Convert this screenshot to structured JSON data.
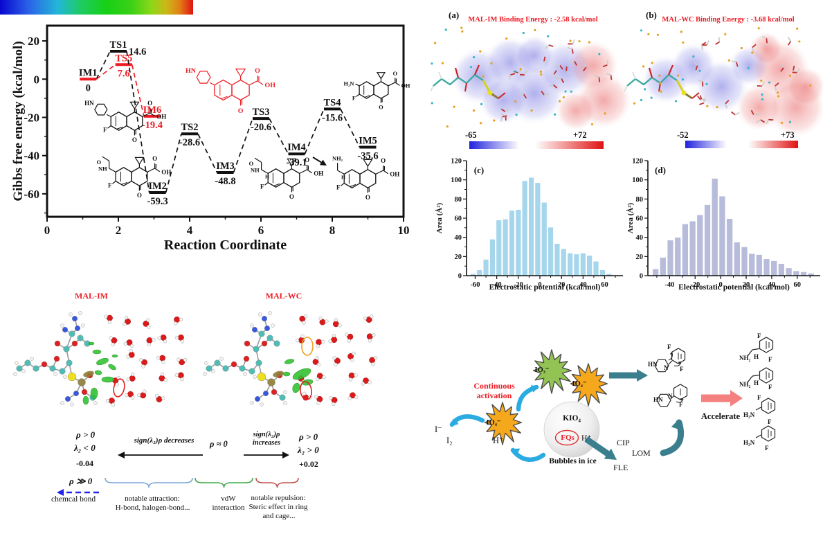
{
  "colors": {
    "accent_red": "#ed1c24",
    "hist_c_bar": "#a5d6eb",
    "hist_d_bar": "#b8bcdb",
    "starburst_green": "#92c353",
    "starburst_orange": "#f6a81c",
    "arrow_blue": "#2aabe2",
    "arrow_teal": "#3b7f8e",
    "arrow_pink": "#f58080",
    "esp_blue": "#2121dd",
    "esp_red": "#e01212"
  },
  "chart_data": [
    {
      "id": "gibbs_energy_profile",
      "type": "line",
      "variant": "reaction-energy-levels",
      "xlabel": "Reaction Coordinate",
      "ylabel": "Gibbs free energy (kcal/mol)",
      "xlim": [
        0,
        10
      ],
      "ylim": [
        -72,
        28
      ],
      "x_ticks": [
        0,
        2,
        4,
        6,
        8,
        10
      ],
      "y_ticks": [
        20,
        0,
        -20,
        -40,
        -60
      ],
      "levels": [
        {
          "name": "IM1",
          "value": "0",
          "num": 0,
          "x": 1.15,
          "series": "main",
          "value_pos": "below",
          "bar_color": "#ed1c24"
        },
        {
          "name": "TS1",
          "value": "14.6",
          "num": 14.6,
          "x": 2.0,
          "series": "main",
          "value_pos": "right"
        },
        {
          "name": "TS5",
          "value": "7.6",
          "num": 7.6,
          "x": 2.15,
          "series": "alt",
          "value_pos": "below"
        },
        {
          "name": "IM6",
          "value": "-19.4",
          "num": -19.4,
          "x": 2.95,
          "series": "alt",
          "value_pos": "below"
        },
        {
          "name": "IM2",
          "value": "-59.3",
          "num": -59.3,
          "x": 3.1,
          "series": "main",
          "value_pos": "below"
        },
        {
          "name": "TS2",
          "value": "-28.6",
          "num": -28.6,
          "x": 4.0,
          "series": "main",
          "value_pos": "below"
        },
        {
          "name": "IM3",
          "value": "-48.8",
          "num": -48.8,
          "x": 5.0,
          "series": "main",
          "value_pos": "below"
        },
        {
          "name": "TS3",
          "value": "-20.6",
          "num": -20.6,
          "x": 6.0,
          "series": "main",
          "value_pos": "below"
        },
        {
          "name": "IM4",
          "value": "-39.1",
          "num": -39.1,
          "x": 7.0,
          "series": "main",
          "value_pos": "below"
        },
        {
          "name": "TS4",
          "value": "-15.6",
          "num": -15.6,
          "x": 8.0,
          "series": "main",
          "value_pos": "below"
        },
        {
          "name": "IM5",
          "value": "-35.6",
          "num": -35.6,
          "x": 9.0,
          "series": "main",
          "value_pos": "below"
        }
      ],
      "paths": {
        "main": [
          "IM1",
          "TS1",
          "IM2",
          "TS2",
          "IM3",
          "TS3",
          "IM4",
          "TS4",
          "IM5"
        ],
        "alt": [
          "IM1",
          "TS5",
          "IM6"
        ]
      },
      "series_colors": {
        "main": "#111111",
        "alt": "#ed1c24"
      }
    },
    {
      "id": "esp_histogram_mal_im",
      "tag": "(c)",
      "type": "bar",
      "xlabel": "Electrostatic potential (kcal/mol)",
      "ylabel": "Area (Å²)",
      "xlim": [
        -68,
        77
      ],
      "ylim": [
        0,
        120
      ],
      "x_ticks": [
        -60,
        -40,
        -20,
        0,
        20,
        40,
        60
      ],
      "y_ticks": [
        0,
        20,
        40,
        60,
        80,
        100,
        120
      ],
      "bin_centers": [
        -62,
        -56,
        -50,
        -44,
        -38,
        -32,
        -26,
        -20,
        -14,
        -8,
        -2,
        4,
        10,
        16,
        22,
        28,
        34,
        40,
        46,
        52,
        58,
        64
      ],
      "values": [
        2,
        6,
        17,
        38,
        58,
        59,
        68,
        69,
        99,
        102.5,
        97,
        76.5,
        50.5,
        33.5,
        28,
        23.5,
        22.5,
        23.5,
        21,
        15,
        6,
        2
      ],
      "bar_color": "#a5d6eb"
    },
    {
      "id": "esp_histogram_mal_wc",
      "tag": "(d)",
      "type": "bar",
      "xlabel": "Electrostatic potential (kcal/mol)",
      "ylabel": "Area (Å²)",
      "xlim": [
        -57,
        78
      ],
      "ylim": [
        0,
        120
      ],
      "x_ticks": [
        -40,
        -20,
        0,
        20,
        40,
        60
      ],
      "y_ticks": [
        0,
        20,
        40,
        60,
        80,
        100,
        120
      ],
      "bin_centers": [
        -51,
        -45.2,
        -39.4,
        -33.6,
        -27.8,
        -22,
        -16.2,
        -10.4,
        -4.6,
        1.2,
        7,
        12.8,
        18.6,
        24.4,
        30.2,
        36,
        41.8,
        47.6,
        53.4,
        59.2,
        65,
        70.8
      ],
      "values": [
        7,
        19,
        37,
        40,
        54,
        57,
        63.5,
        74,
        101.5,
        83,
        59.5,
        35,
        30,
        23,
        22,
        17.5,
        15.5,
        12.5,
        8,
        5,
        4,
        2.5
      ],
      "bar_color": "#b8bcdb"
    }
  ],
  "energy_molecules": {
    "im1": {
      "sub": "HN",
      "f": "F",
      "o_ket": "O",
      "o_acid": "O",
      "oh": "OH"
    },
    "im6": {
      "sub": "HN",
      "o_ket": "O",
      "o_acid": "O",
      "oh": "OH"
    },
    "im2": {
      "sub": "NH",
      "sub2": "O",
      "f": "F",
      "o_ket": "O",
      "o_acid": "O",
      "oh": "OH"
    },
    "im3": {
      "sub": "NH",
      "sub2": "O",
      "subH": "H",
      "f": "F",
      "o_ket": "O",
      "o_acid": "O",
      "oh": "OH"
    },
    "im4": {
      "sub": "NH₂",
      "subH": "H",
      "f": "F",
      "o_ket": "O",
      "o_acid": "O",
      "oh": "OH"
    },
    "im5": {
      "sub": "H₂N",
      "f": "F",
      "o_ket": "O",
      "o_acid": "O",
      "oh": "OH"
    }
  },
  "panel_a": {
    "tag": "(a)",
    "title": "MAL-IM Binding Energy : -2.58 kcal/mol",
    "scale_min": "-65",
    "scale_max": "+72"
  },
  "panel_b": {
    "tag": "(b)",
    "title": "MAL-WC Binding Energy : -3.68 kcal/mol",
    "scale_min": "-52",
    "scale_max": "+73"
  },
  "nci_panel": {
    "label_im": "MAL-IM",
    "label_wc": "MAL-WC",
    "rho_pos_left": "ρ > 0",
    "lambda_neg": "λ₂ < 0",
    "scale_min": "-0.04",
    "arrow_left_text": "sign(λ₂)ρ decreases",
    "rho_zero": "ρ ≈ 0",
    "arrow_right_text_1": "sign(λ₂)ρ",
    "arrow_right_text_2": "increases",
    "rho_pos_right": "ρ > 0",
    "lambda_pos": "λ₂ > 0",
    "scale_max": "+0.02",
    "rho_much_gt": "ρ ≫ 0",
    "chemical_bond": "chemcal bond",
    "attraction_1": "notable attraction:",
    "attraction_2": "H-bond, halogen-bond...",
    "vdw_1": "vdW",
    "vdw_2": "interaction",
    "repulsion_1": "notable repulsion:",
    "repulsion_2": "Steric effect in ring",
    "repulsion_3": "and cage..."
  },
  "scheme": {
    "continuous_1": "Continuous",
    "continuous_2": "activation",
    "io3": "IO₃⁻",
    "io4_top": "IO₄⁻",
    "io4_mid": "IO₄⁻",
    "i_minus": "I⁻",
    "i2": "I₂",
    "h_plus_left": "H⁺",
    "kio4": "KIO₄",
    "fqs": "FQs",
    "h_plus_sphere": "H⁺",
    "bubbles": "Bubbles in ice",
    "cip": "CIP",
    "lom": "LOM",
    "fle": "FLE",
    "accelerate": "Accelerate",
    "mid1_labels": {
      "hn": "HN",
      "n": "N",
      "f_top": "F",
      "f_bot": "F"
    },
    "mid2_labels": {
      "hn": "HN",
      "n": "N",
      "f": "F"
    },
    "prod1_labels": {
      "nh2": "NH₂",
      "h": "H",
      "f_top": "F",
      "f_bot": "F"
    },
    "prod2_labels": {
      "nh2": "NH₂",
      "h": "H",
      "f": "F"
    },
    "prod3_labels": {
      "h2n": "H₂N",
      "f_top": "F",
      "f_bot": "F"
    },
    "prod4_labels": {
      "h2n": "H₂N",
      "f": "F"
    }
  }
}
